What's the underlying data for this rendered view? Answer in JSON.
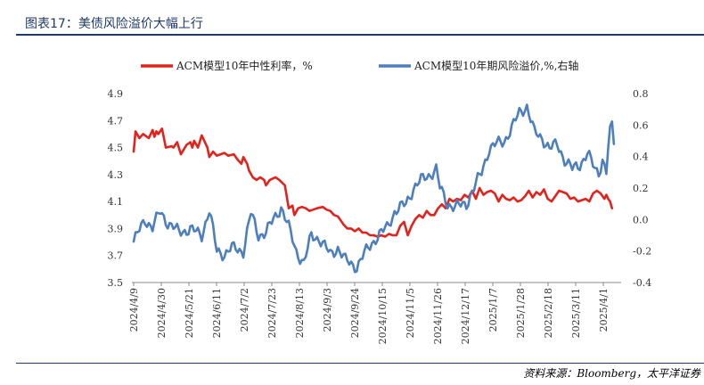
{
  "title": "图表17：美债风险溢价大幅上行",
  "source": "资料来源：Bloomberg，太平洋证券",
  "colors": {
    "red": "#e3221c",
    "blue": "#4d7fbf",
    "title": "#1f3a6b"
  },
  "chart_data": {
    "type": "line",
    "title": "",
    "xlabel": "",
    "ylabel_left": "",
    "ylabel_right": "",
    "ylim_left": [
      3.5,
      4.9
    ],
    "yticks_left": [
      "4.9",
      "4.7",
      "4.5",
      "4.3",
      "4.1",
      "3.9",
      "3.7",
      "3.5"
    ],
    "ylim_right": [
      -0.4,
      0.8
    ],
    "yticks_right": [
      "0.8",
      "0.6",
      "0.4",
      "0.2",
      "0.0",
      "-0.2",
      "-0.4"
    ],
    "xticks": [
      "2024/4/9",
      "2024/4/30",
      "2024/5/21",
      "2024/6/11",
      "2024/7/2",
      "2024/7/23",
      "2024/8/13",
      "2024/9/3",
      "2024/9/24",
      "2024/10/15",
      "2024/11/5",
      "2024/11/26",
      "2024/12/17",
      "2025/1/7",
      "2025/1/28",
      "2025/2/18",
      "2025/3/11",
      "2025/4/1"
    ],
    "legend_position": "top",
    "grid": false,
    "series": [
      {
        "name": "ACM模型10年中性利率，%",
        "axis": "left",
        "color": "#e3221c",
        "x": [
          0,
          1,
          3,
          5,
          8,
          10,
          11,
          12,
          13,
          15,
          17,
          20,
          21,
          23,
          25,
          28,
          30,
          31,
          32,
          34,
          36,
          39,
          40,
          42,
          44,
          46,
          48,
          50,
          53,
          55,
          57,
          58,
          60,
          61,
          63,
          65,
          67,
          69,
          70,
          72,
          75,
          77,
          80,
          82,
          84,
          85,
          87,
          89,
          91,
          93,
          95,
          97,
          100,
          102,
          104,
          106,
          108,
          110,
          111,
          113,
          115,
          117,
          119,
          121,
          123,
          125,
          127,
          129,
          131,
          133,
          135,
          137,
          139,
          141,
          143,
          145,
          147,
          149,
          151,
          153,
          155,
          157,
          159,
          161,
          163,
          165,
          167,
          169,
          171,
          173,
          175,
          177,
          179,
          181,
          183,
          185,
          187,
          189,
          191,
          193,
          195,
          197,
          199,
          201,
          203,
          205,
          207,
          209,
          211,
          213,
          215,
          217,
          219,
          221,
          223,
          225,
          227,
          229,
          231,
          233,
          235,
          237,
          239,
          241,
          243,
          245,
          247,
          249,
          250,
          251,
          252,
          253
        ],
        "values": [
          4.47,
          4.62,
          4.57,
          4.6,
          4.57,
          4.63,
          4.58,
          4.62,
          4.6,
          4.64,
          4.5,
          4.51,
          4.5,
          4.54,
          4.45,
          4.52,
          4.54,
          4.5,
          4.55,
          4.5,
          4.59,
          4.5,
          4.43,
          4.47,
          4.44,
          4.45,
          4.46,
          4.44,
          4.45,
          4.41,
          4.38,
          4.43,
          4.38,
          4.33,
          4.28,
          4.26,
          4.28,
          4.26,
          4.22,
          4.26,
          4.28,
          4.26,
          4.22,
          4.05,
          4.07,
          4.0,
          4.05,
          4.06,
          4.05,
          4.03,
          4.04,
          4.05,
          4.06,
          4.04,
          4.03,
          4.0,
          3.99,
          3.95,
          3.93,
          3.9,
          3.9,
          3.88,
          3.9,
          3.87,
          3.87,
          3.85,
          3.85,
          3.84,
          3.85,
          3.84,
          3.86,
          3.85,
          3.85,
          3.92,
          3.95,
          3.85,
          3.92,
          3.97,
          4.0,
          3.98,
          4.03,
          4.0,
          4.0,
          4.05,
          4.08,
          4.05,
          4.12,
          4.1,
          4.12,
          4.11,
          4.15,
          4.13,
          4.18,
          4.12,
          4.2,
          4.15,
          4.17,
          4.18,
          4.16,
          4.1,
          4.15,
          4.12,
          4.11,
          4.13,
          4.1,
          4.11,
          4.14,
          4.18,
          4.13,
          4.17,
          4.15,
          4.19,
          4.12,
          4.1,
          4.14,
          4.18,
          4.17,
          4.16,
          4.12,
          4.13,
          4.1,
          4.11,
          4.12,
          4.1,
          4.16,
          4.18,
          4.16,
          4.12,
          4.15,
          4.12,
          4.1,
          4.05
        ]
      },
      {
        "name": "ACM模型10年期风险溢价,%,右轴",
        "axis": "right",
        "color": "#4d7fbf",
        "x": [],
        "values": []
      }
    ]
  }
}
